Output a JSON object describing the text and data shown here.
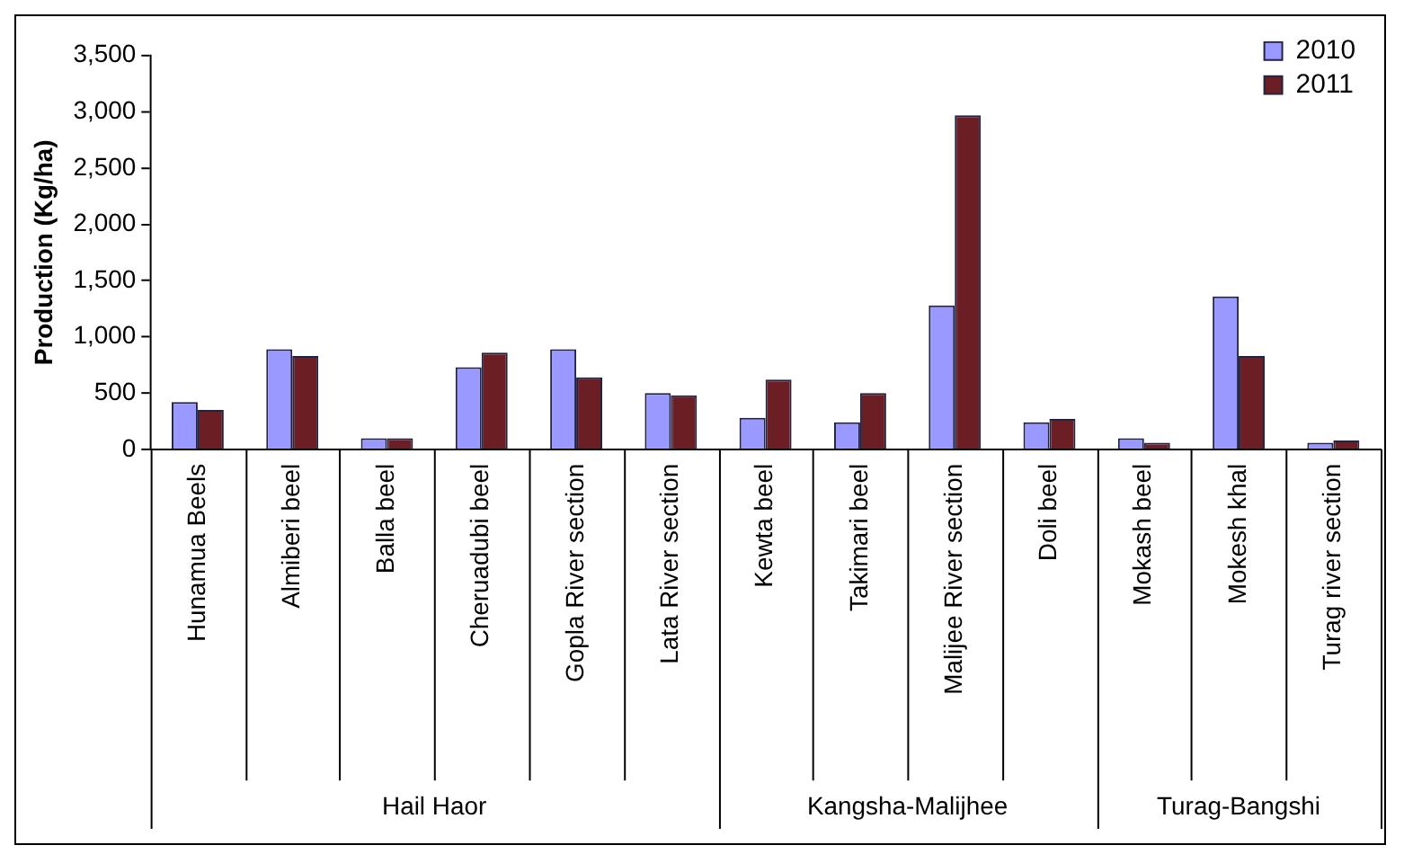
{
  "chart_data": {
    "type": "bar",
    "ylabel": "Production (Kg/ha)",
    "categories": [
      "Hunamua Beels",
      "Almiberi beel",
      "Balla beel",
      "Cheruadubi beel",
      "Gopla River section",
      "Lata River section",
      "Kewta beel",
      "Takimari beel",
      "Malijee River section",
      "Doli beel",
      "Mokash beel",
      "Mokesh khal",
      "Turag river section"
    ],
    "series": [
      {
        "name": "2010",
        "color": "#9999ff",
        "values": [
          420,
          890,
          100,
          730,
          890,
          500,
          280,
          240,
          1280,
          240,
          100,
          1360,
          60
        ]
      },
      {
        "name": "2011",
        "color": "#6b1f24",
        "values": [
          350,
          830,
          100,
          860,
          640,
          480,
          620,
          500,
          2970,
          270,
          60,
          830,
          80
        ]
      }
    ],
    "ylim": [
      0,
      3500
    ],
    "yticks": [
      {
        "value": 0,
        "label": "0"
      },
      {
        "value": 500,
        "label": "500"
      },
      {
        "value": 1000,
        "label": "1,000"
      },
      {
        "value": 1500,
        "label": "1,500"
      },
      {
        "value": 2000,
        "label": "2,000"
      },
      {
        "value": 2500,
        "label": "2,500"
      },
      {
        "value": 3000,
        "label": "3,000"
      },
      {
        "value": 3500,
        "label": "3,500"
      }
    ],
    "annotations": [
      "Hail Haor",
      "Kangsha-Malijhee",
      "Turag-Bangshi"
    ],
    "legend": "top right",
    "grid": false
  }
}
